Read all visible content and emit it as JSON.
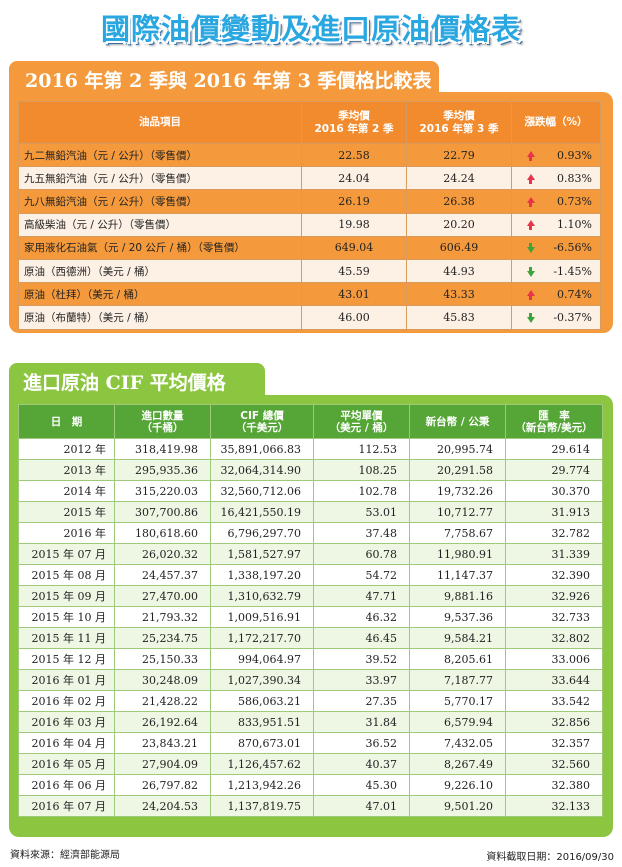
{
  "title": "國際油價變動及進口原油價格表",
  "section1": {
    "heading": "2016 年第 2 季與 2016 年第 3 季價格比較表",
    "headers": {
      "item": "油品項目",
      "q2_line1": "季均價",
      "q2_line2": "2016 年第 2 季",
      "q3_line1": "季均價",
      "q3_line2": "2016 年第 3 季",
      "change": "漲跌幅（%）"
    },
    "rows": [
      {
        "item": "九二無鉛汽油（元 / 公升）（零售價）",
        "q2": "22.58",
        "q3": "22.79",
        "direction": "up",
        "pct": "0.93%"
      },
      {
        "item": "九五無鉛汽油（元 / 公升）（零售價）",
        "q2": "24.04",
        "q3": "24.24",
        "direction": "up",
        "pct": "0.83%"
      },
      {
        "item": "九八無鉛汽油（元 / 公升）（零售價）",
        "q2": "26.19",
        "q3": "26.38",
        "direction": "up",
        "pct": "0.73%"
      },
      {
        "item": "高級柴油（元 / 公升）（零售價）",
        "q2": "19.98",
        "q3": "20.20",
        "direction": "up",
        "pct": "1.10%"
      },
      {
        "item": "家用液化石油氣（元 / 20 公斤 / 桶）（零售價）",
        "q2": "649.04",
        "q3": "606.49",
        "direction": "down",
        "pct": "-6.56%"
      },
      {
        "item": "原油（西德洲）（美元 / 桶）",
        "q2": "45.59",
        "q3": "44.93",
        "direction": "down",
        "pct": "-1.45%"
      },
      {
        "item": "原油（杜拜）（美元 / 桶）",
        "q2": "43.01",
        "q3": "43.33",
        "direction": "up",
        "pct": "0.74%"
      },
      {
        "item": "原油（布蘭特）（美元 / 桶）",
        "q2": "46.00",
        "q3": "45.83",
        "direction": "down",
        "pct": "-0.37%"
      }
    ],
    "colors": {
      "frame": "#f59a3c",
      "header": "#f28b2e",
      "up": "#e8344b",
      "down": "#3aa53a"
    }
  },
  "section2": {
    "heading": "進口原油 CIF 平均價格",
    "headers": {
      "date": "日　期",
      "qty_line1": "進口數量",
      "qty_line2": "（千桶）",
      "cif_line1": "CIF 總價",
      "cif_line2": "（千美元）",
      "avg_line1": "平均單價",
      "avg_line2": "（美元 / 桶）",
      "ntd": "新台幣 / 公秉",
      "rate_line1": "匯　率",
      "rate_line2": "（新台幣/美元）"
    },
    "rows": [
      {
        "date": "2012 年",
        "qty": "318,419.98",
        "cif": "35,891,066.83",
        "avg": "112.53",
        "ntd": "20,995.74",
        "rate": "29.614"
      },
      {
        "date": "2013 年",
        "qty": "295,935.36",
        "cif": "32,064,314.90",
        "avg": "108.25",
        "ntd": "20,291.58",
        "rate": "29.774"
      },
      {
        "date": "2014 年",
        "qty": "315,220.03",
        "cif": "32,560,712.06",
        "avg": "102.78",
        "ntd": "19,732.26",
        "rate": "30.370"
      },
      {
        "date": "2015 年",
        "qty": "307,700.86",
        "cif": "16,421,550.19",
        "avg": "53.01",
        "ntd": "10,712.77",
        "rate": "31.913"
      },
      {
        "date": "2016 年",
        "qty": "180,618.60",
        "cif": "6,796,297.70",
        "avg": "37.48",
        "ntd": "7,758.67",
        "rate": "32.782"
      },
      {
        "date": "2015 年 07 月",
        "qty": "26,020.32",
        "cif": "1,581,527.97",
        "avg": "60.78",
        "ntd": "11,980.91",
        "rate": "31.339"
      },
      {
        "date": "2015 年 08 月",
        "qty": "24,457.37",
        "cif": "1,338,197.20",
        "avg": "54.72",
        "ntd": "11,147.37",
        "rate": "32.390"
      },
      {
        "date": "2015 年 09 月",
        "qty": "27,470.00",
        "cif": "1,310,632.79",
        "avg": "47.71",
        "ntd": "9,881.16",
        "rate": "32.926"
      },
      {
        "date": "2015 年 10 月",
        "qty": "21,793.32",
        "cif": "1,009,516.91",
        "avg": "46.32",
        "ntd": "9,537.36",
        "rate": "32.733"
      },
      {
        "date": "2015 年 11 月",
        "qty": "25,234.75",
        "cif": "1,172,217.70",
        "avg": "46.45",
        "ntd": "9,584.21",
        "rate": "32.802"
      },
      {
        "date": "2015 年 12 月",
        "qty": "25,150.33",
        "cif": "994,064.97",
        "avg": "39.52",
        "ntd": "8,205.61",
        "rate": "33.006"
      },
      {
        "date": "2016 年 01 月",
        "qty": "30,248.09",
        "cif": "1,027,390.34",
        "avg": "33.97",
        "ntd": "7,187.77",
        "rate": "33.644"
      },
      {
        "date": "2016 年 02 月",
        "qty": "21,428.22",
        "cif": "586,063.21",
        "avg": "27.35",
        "ntd": "5,770.17",
        "rate": "33.542"
      },
      {
        "date": "2016 年 03 月",
        "qty": "26,192.64",
        "cif": "833,951.51",
        "avg": "31.84",
        "ntd": "6,579.94",
        "rate": "32.856"
      },
      {
        "date": "2016 年 04 月",
        "qty": "23,843.21",
        "cif": "870,673.01",
        "avg": "36.52",
        "ntd": "7,432.05",
        "rate": "32.357"
      },
      {
        "date": "2016 年 05 月",
        "qty": "27,904.09",
        "cif": "1,126,457.62",
        "avg": "40.37",
        "ntd": "8,267.49",
        "rate": "32.560"
      },
      {
        "date": "2016 年 06 月",
        "qty": "26,797.82",
        "cif": "1,213,942.26",
        "avg": "45.30",
        "ntd": "9,226.10",
        "rate": "32.380"
      },
      {
        "date": "2016 年 07 月",
        "qty": "24,204.53",
        "cif": "1,137,819.75",
        "avg": "47.01",
        "ntd": "9,501.20",
        "rate": "32.133"
      }
    ],
    "colors": {
      "frame": "#8cc640",
      "header": "#55a637"
    }
  },
  "footer": {
    "source": "資料來源：經濟部能源局",
    "cutoff": "資料截取日期：2016/09/30"
  }
}
